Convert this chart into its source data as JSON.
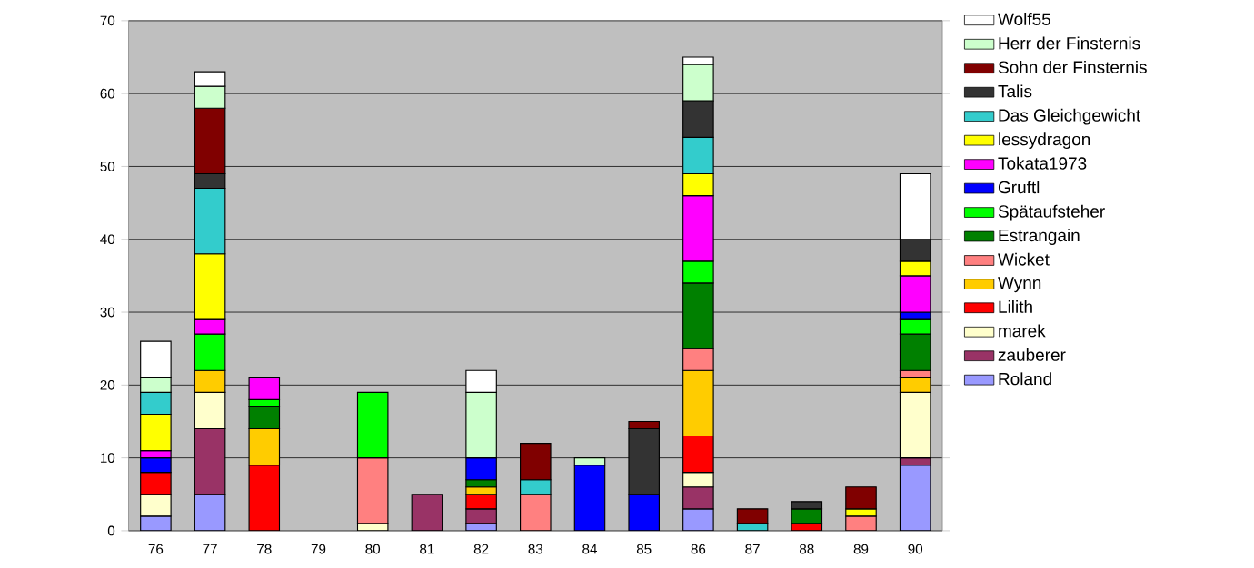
{
  "chart_data": {
    "type": "bar",
    "stacked": true,
    "categories": [
      "76",
      "77",
      "78",
      "79",
      "80",
      "81",
      "82",
      "83",
      "84",
      "85",
      "86",
      "87",
      "88",
      "89",
      "90"
    ],
    "ylim": [
      0,
      70
    ],
    "yticks": [
      0,
      10,
      20,
      30,
      40,
      50,
      60,
      70
    ],
    "grid": "y",
    "legend": "right",
    "series": [
      {
        "name": "Roland",
        "color": "#9999ff",
        "values": [
          2,
          5,
          null,
          null,
          null,
          null,
          1,
          null,
          null,
          null,
          3,
          null,
          null,
          null,
          9
        ]
      },
      {
        "name": "zauberer",
        "color": "#993366",
        "values": [
          null,
          9,
          null,
          null,
          null,
          5,
          2,
          null,
          null,
          null,
          3,
          null,
          null,
          null,
          1
        ]
      },
      {
        "name": "marek",
        "color": "#ffffcc",
        "values": [
          3,
          5,
          null,
          null,
          1,
          null,
          null,
          null,
          null,
          null,
          2,
          null,
          null,
          null,
          9
        ]
      },
      {
        "name": "Lilith",
        "color": "#ff0000",
        "values": [
          3,
          null,
          9,
          null,
          null,
          null,
          2,
          null,
          null,
          null,
          5,
          null,
          1,
          null,
          null
        ]
      },
      {
        "name": "Wynn",
        "color": "#ffcc00",
        "values": [
          null,
          3,
          5,
          null,
          null,
          null,
          1,
          null,
          null,
          null,
          9,
          null,
          null,
          null,
          2
        ]
      },
      {
        "name": "Wicket",
        "color": "#ff8080",
        "values": [
          null,
          null,
          null,
          null,
          9,
          null,
          null,
          5,
          null,
          null,
          3,
          null,
          null,
          2,
          1
        ]
      },
      {
        "name": "Estrangain",
        "color": "#008000",
        "values": [
          null,
          null,
          3,
          null,
          null,
          null,
          1,
          null,
          null,
          null,
          9,
          null,
          2,
          null,
          5
        ]
      },
      {
        "name": "Spätaufsteher",
        "color": "#00ff00",
        "values": [
          null,
          5,
          1,
          null,
          9,
          null,
          null,
          null,
          null,
          null,
          3,
          null,
          null,
          null,
          2
        ]
      },
      {
        "name": "Gruftl",
        "color": "#0000ff",
        "values": [
          2,
          null,
          null,
          null,
          null,
          null,
          3,
          null,
          9,
          5,
          null,
          null,
          null,
          null,
          1
        ]
      },
      {
        "name": "Tokata1973",
        "color": "#ff00ff",
        "values": [
          1,
          2,
          3,
          null,
          null,
          null,
          null,
          null,
          null,
          null,
          9,
          null,
          null,
          null,
          5
        ]
      },
      {
        "name": "lessydragon",
        "color": "#ffff00",
        "values": [
          5,
          9,
          null,
          null,
          null,
          null,
          null,
          null,
          null,
          null,
          3,
          null,
          null,
          1,
          2
        ]
      },
      {
        "name": "Das Gleichgewicht",
        "color": "#33cccc",
        "values": [
          3,
          9,
          null,
          null,
          null,
          null,
          null,
          2,
          null,
          null,
          5,
          1,
          null,
          null,
          null
        ]
      },
      {
        "name": "Talis",
        "color": "#333333",
        "values": [
          null,
          2,
          null,
          null,
          null,
          null,
          null,
          null,
          null,
          9,
          5,
          null,
          1,
          null,
          3
        ]
      },
      {
        "name": "Sohn der Finsternis",
        "color": "#800000",
        "values": [
          null,
          9,
          null,
          null,
          null,
          null,
          null,
          5,
          null,
          1,
          null,
          2,
          null,
          3,
          null
        ]
      },
      {
        "name": "Herr der Finsternis",
        "color": "#ccffcc",
        "values": [
          2,
          3,
          null,
          null,
          null,
          null,
          9,
          null,
          1,
          null,
          5,
          null,
          null,
          null,
          null
        ]
      },
      {
        "name": "Wolf55",
        "color": "#ffffff",
        "values": [
          5,
          2,
          null,
          null,
          null,
          null,
          3,
          null,
          null,
          null,
          1,
          null,
          null,
          null,
          9
        ]
      }
    ]
  }
}
